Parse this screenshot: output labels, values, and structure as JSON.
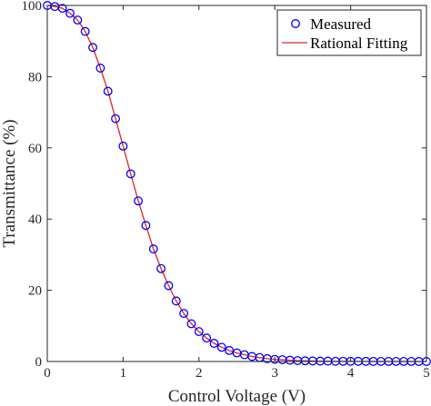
{
  "chart_data": {
    "type": "line",
    "xlabel": "Control Voltage (V)",
    "ylabel": "Transmittance (%)",
    "xlim": [
      0,
      5
    ],
    "ylim": [
      0,
      100
    ],
    "xticks": [
      0,
      1,
      2,
      3,
      4,
      5
    ],
    "yticks": [
      0,
      20,
      40,
      60,
      80,
      100
    ],
    "x_tick_labels": [
      "0",
      "1",
      "2",
      "3",
      "4",
      "5"
    ],
    "y_tick_labels": [
      "0",
      "20",
      "40",
      "60",
      "80",
      "100"
    ],
    "grid": false,
    "box": true,
    "legend_position": "top-right",
    "series": [
      {
        "name": "Measured",
        "style": "markers",
        "marker": "circle",
        "color": "#0000ff",
        "x": [
          0,
          0.1,
          0.2,
          0.3,
          0.4,
          0.5,
          0.6,
          0.7,
          0.8,
          0.9,
          1.0,
          1.1,
          1.2,
          1.3,
          1.4,
          1.5,
          1.6,
          1.7,
          1.8,
          1.9,
          2.0,
          2.1,
          2.2,
          2.3,
          2.4,
          2.5,
          2.6,
          2.7,
          2.8,
          2.9,
          3.0,
          3.1,
          3.2,
          3.3,
          3.4,
          3.5,
          3.6,
          3.7,
          3.8,
          3.9,
          4.0,
          4.1,
          4.2,
          4.3,
          4.4,
          4.5,
          4.6,
          4.7,
          4.8,
          4.9,
          5.0
        ],
        "y": [
          100,
          99.7,
          99.2,
          97.8,
          95.9,
          92.7,
          88.2,
          82.4,
          75.9,
          68.2,
          60.5,
          52.7,
          45.1,
          38.2,
          31.6,
          26.1,
          21.3,
          17.0,
          13.5,
          10.6,
          8.4,
          6.6,
          5.1,
          4.0,
          3.1,
          2.4,
          1.9,
          1.4,
          1.1,
          0.8,
          0.6,
          0.5,
          0.35,
          0.25,
          0.2,
          0.15,
          0.1,
          0.1,
          0.05,
          0.05,
          0.05,
          0.03,
          0.03,
          0.02,
          0.02,
          0.01,
          0.01,
          0.01,
          0.01,
          0.0,
          0.0
        ]
      },
      {
        "name": "Rational Fitting",
        "style": "line",
        "color": "#d62728",
        "x": [
          0,
          0.1,
          0.2,
          0.3,
          0.4,
          0.5,
          0.6,
          0.7,
          0.8,
          0.9,
          1.0,
          1.1,
          1.2,
          1.3,
          1.4,
          1.5,
          1.6,
          1.7,
          1.8,
          1.9,
          2.0,
          2.1,
          2.2,
          2.3,
          2.4,
          2.5,
          2.6,
          2.7,
          2.8,
          2.9,
          3.0,
          3.1,
          3.2,
          3.3,
          3.4,
          3.5,
          3.6,
          3.7,
          3.8,
          3.9,
          4.0,
          4.1,
          4.2,
          4.3,
          4.4,
          4.5,
          4.6,
          4.7,
          4.8,
          4.9,
          5.0
        ],
        "y": [
          100,
          99.7,
          99.2,
          97.8,
          95.9,
          92.7,
          88.2,
          82.4,
          75.9,
          68.2,
          60.5,
          52.7,
          45.1,
          38.2,
          31.6,
          26.1,
          21.3,
          17.0,
          13.5,
          10.6,
          8.4,
          6.6,
          5.1,
          4.0,
          3.1,
          2.4,
          1.9,
          1.4,
          1.1,
          0.8,
          0.6,
          0.5,
          0.35,
          0.25,
          0.2,
          0.15,
          0.1,
          0.1,
          0.05,
          0.05,
          0.05,
          0.03,
          0.03,
          0.02,
          0.02,
          0.01,
          0.01,
          0.01,
          0.01,
          0.0,
          0.0
        ]
      }
    ]
  }
}
